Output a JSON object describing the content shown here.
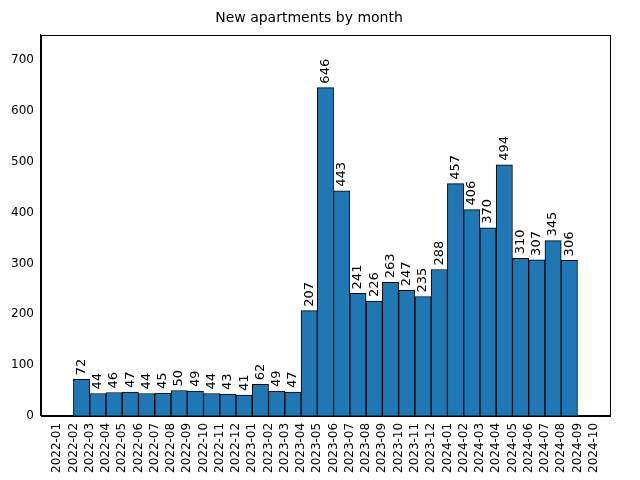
{
  "chart_data": {
    "type": "histogram",
    "title": "New apartments by month",
    "bins": [
      "2022-02",
      "2022-03",
      "2022-04",
      "2022-05",
      "2022-06",
      "2022-07",
      "2022-08",
      "2022-09",
      "2022-10",
      "2022-11",
      "2022-12",
      "2023-01",
      "2023-02",
      "2023-03",
      "2023-04",
      "2023-05",
      "2023-06",
      "2023-07",
      "2023-08",
      "2023-09",
      "2023-10",
      "2023-11",
      "2023-12",
      "2024-01",
      "2024-02",
      "2024-03",
      "2024-04",
      "2024-05",
      "2024-06",
      "2024-07",
      "2024-08",
      "2024-09"
    ],
    "values": [
      72,
      44,
      46,
      47,
      44,
      45,
      50,
      49,
      44,
      43,
      41,
      62,
      49,
      47,
      207,
      646,
      443,
      241,
      226,
      263,
      247,
      235,
      288,
      457,
      406,
      370,
      494,
      310,
      307,
      345,
      306
    ],
    "color": "#1f77b4",
    "xlim": [
      "2021-12",
      "2024-11"
    ],
    "xticks": [
      "2022-01",
      "2022-02",
      "2022-03",
      "2022-04",
      "2022-05",
      "2022-06",
      "2022-07",
      "2022-08",
      "2022-09",
      "2022-10",
      "2022-11",
      "2022-12",
      "2023-01",
      "2023-02",
      "2023-03",
      "2023-04",
      "2023-05",
      "2023-06",
      "2023-07",
      "2023-08",
      "2023-09",
      "2023-10",
      "2023-11",
      "2023-12",
      "2024-01",
      "2024-02",
      "2024-03",
      "2024-04",
      "2024-05",
      "2024-06",
      "2024-07",
      "2024-08",
      "2024-09",
      "2024-10"
    ],
    "ylim": [
      0,
      750
    ],
    "yticks": [
      0,
      100,
      200,
      300,
      400,
      500,
      600,
      700
    ],
    "grid": false,
    "data_labels": true
  }
}
